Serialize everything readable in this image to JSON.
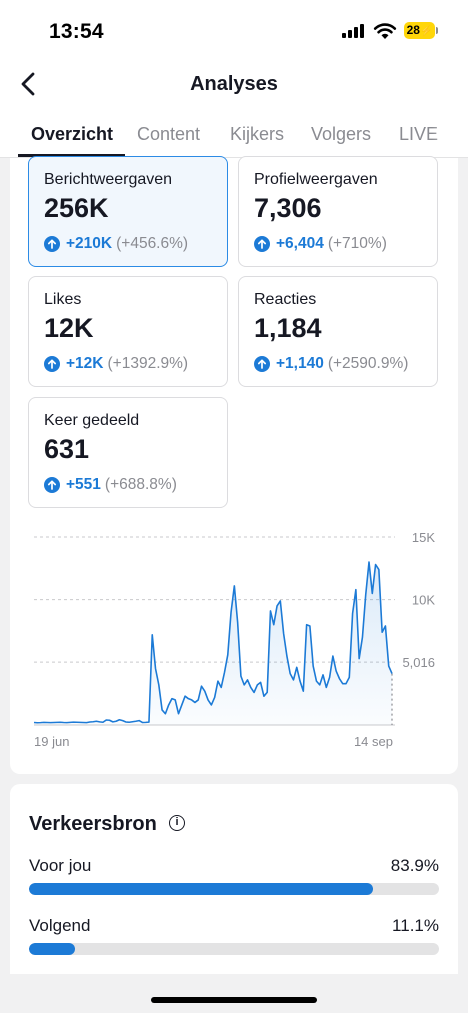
{
  "status_bar": {
    "time": "13:54",
    "battery": "28"
  },
  "header": {
    "title": "Analyses",
    "back_icon": "chevron-left-icon"
  },
  "tabs": [
    {
      "label": "Overzicht",
      "active": true
    },
    {
      "label": "Content",
      "active": false
    },
    {
      "label": "Kijkers",
      "active": false
    },
    {
      "label": "Volgers",
      "active": false
    },
    {
      "label": "LIVE",
      "active": false
    }
  ],
  "metrics": [
    {
      "label": "Berichtweergaven",
      "value": "256K",
      "change": "+210K",
      "change_pct": "(+456.6%)",
      "selected": true
    },
    {
      "label": "Profielweergaven",
      "value": "7,306",
      "change": "+6,404",
      "change_pct": "(+710%)",
      "selected": false
    },
    {
      "label": "Likes",
      "value": "12K",
      "change": "+12K",
      "change_pct": "(+1392.9%)",
      "selected": false
    },
    {
      "label": "Reacties",
      "value": "1,184",
      "change": "+1,140",
      "change_pct": "(+2590.9%)",
      "selected": false
    },
    {
      "label": "Keer gedeeld",
      "value": "631",
      "change": "+551",
      "change_pct": "(+688.8%)",
      "selected": false
    }
  ],
  "chart_data": {
    "type": "area",
    "title": "",
    "xlabel": "",
    "ylabel": "",
    "x_tick_labels": [
      "19 jun",
      "14 sep"
    ],
    "y_tick_labels": [
      "15K",
      "10K",
      "5,016"
    ],
    "y_ticks": [
      15000,
      10000,
      5016
    ],
    "ylim": [
      0,
      15000
    ],
    "grid": true,
    "series": [
      {
        "values": [
          200,
          180,
          190,
          210,
          200,
          190,
          200,
          210,
          220,
          200,
          190,
          210,
          230,
          220,
          210,
          200,
          190,
          240,
          260,
          300,
          250,
          220,
          400,
          380,
          250,
          300,
          420,
          350,
          240,
          220,
          260,
          300,
          350,
          200,
          210,
          230,
          7200,
          4500,
          3200,
          1200,
          900,
          1600,
          2100,
          2000,
          900,
          1600,
          2300,
          2100,
          2000,
          1800,
          2000,
          3100,
          2700,
          2000,
          1600,
          2200,
          3500,
          3000,
          4200,
          5600,
          9000,
          11100,
          8200,
          3900,
          3200,
          3600,
          3000,
          2600,
          3200,
          3400,
          2300,
          2600,
          9100,
          8000,
          9500,
          9900,
          7300,
          5500,
          4100,
          3600,
          4600,
          3500,
          2700,
          8000,
          7900,
          4700,
          3500,
          3200,
          4000,
          3000,
          3800,
          5500,
          4300,
          3700,
          3300,
          3300,
          3800,
          8900,
          10800,
          5300,
          7000,
          10400,
          13000,
          10500,
          12800,
          12400,
          7400,
          7900,
          4700,
          4100
        ]
      }
    ]
  },
  "traffic": {
    "title": "Verkeersbron",
    "sources": [
      {
        "name": "Voor jou",
        "pct": "83.9%",
        "fraction": 0.839
      },
      {
        "name": "Volgend",
        "pct": "11.1%",
        "fraction": 0.111
      }
    ]
  },
  "colors": {
    "accent": "#1c7ad6",
    "text": "#161823",
    "muted": "#8a8b91"
  }
}
